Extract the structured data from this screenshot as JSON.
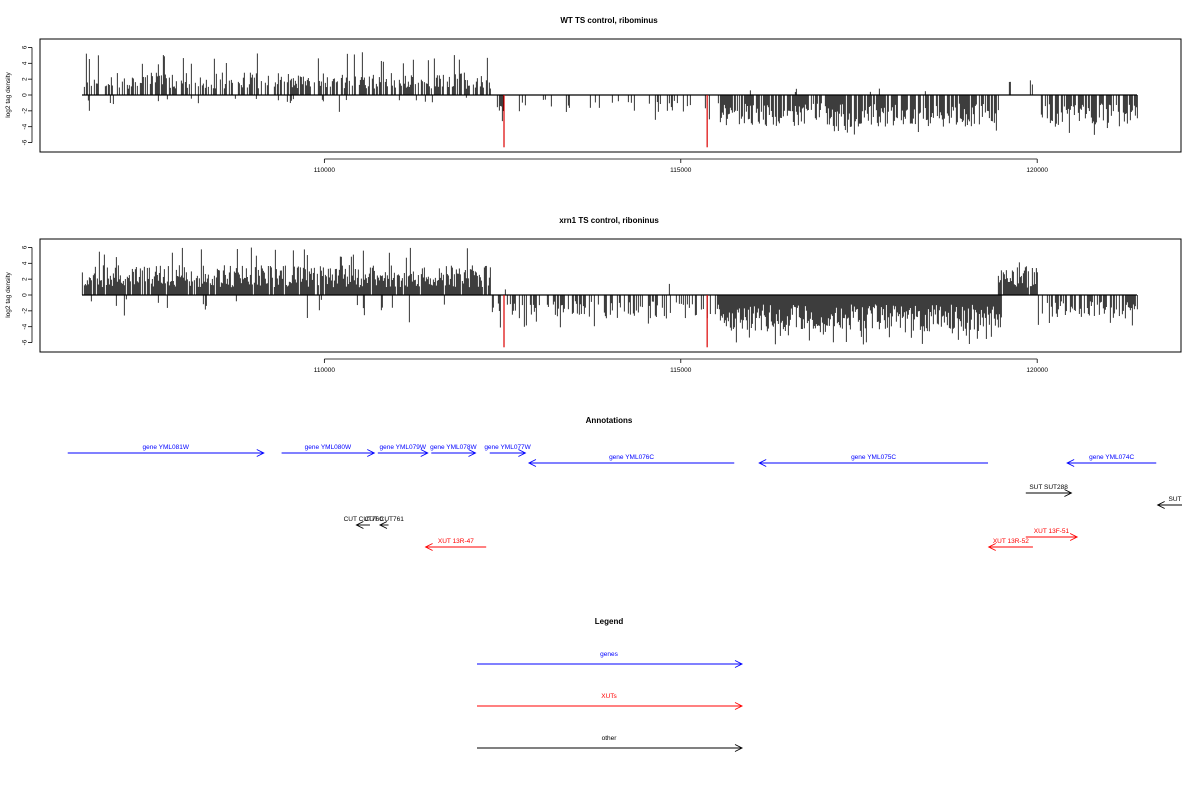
{
  "chart_data": [
    {
      "type": "bar",
      "title": "WT TS control, ribominus",
      "ylabel": "log2 tag density",
      "xlabel": "",
      "xlim": [
        106400,
        121600
      ],
      "ylim": [
        -6.5,
        6.5
      ],
      "x_ticks": [
        110000,
        115000,
        120000
      ],
      "y_ticks": [
        -6,
        -4,
        -2,
        0,
        2,
        4,
        6
      ],
      "grid": false,
      "highlight_color": "#dd0000",
      "bar_color": "#000000",
      "highlights": [
        {
          "x": 112520,
          "y": -6.6
        },
        {
          "x": 115370,
          "y": -6.6
        }
      ],
      "segments": [
        {
          "start": 106600,
          "end": 112350,
          "strand": "+",
          "level": 2.1,
          "density": 0.55,
          "max": 5.4,
          "seed": 11
        },
        {
          "start": 106600,
          "end": 112350,
          "strand": "-",
          "level": 0.9,
          "density": 0.06,
          "max": 2.8,
          "seed": 12
        },
        {
          "start": 112350,
          "end": 115550,
          "strand": "-",
          "level": 1.6,
          "density": 0.22,
          "max": 3.4,
          "seed": 13
        },
        {
          "start": 115550,
          "end": 119500,
          "strand": "-",
          "level": 3.0,
          "density": 0.75,
          "max": 5.0,
          "seed": 14
        },
        {
          "start": 115550,
          "end": 119500,
          "strand": "+",
          "level": 0.9,
          "density": 0.02,
          "max": 2.2,
          "seed": 15
        },
        {
          "start": 119500,
          "end": 120000,
          "strand": "+",
          "level": 1.8,
          "density": 0.12,
          "max": 3.3,
          "seed": 16
        },
        {
          "start": 120000,
          "end": 121400,
          "strand": "-",
          "level": 2.8,
          "density": 0.65,
          "max": 5.2,
          "seed": 17
        }
      ]
    },
    {
      "type": "bar",
      "title": "xrn1 TS control, riboninus",
      "ylabel": "log2 tag density",
      "xlabel": "",
      "xlim": [
        106400,
        121600
      ],
      "ylim": [
        -6.5,
        6.5
      ],
      "x_ticks": [
        110000,
        115000,
        120000
      ],
      "y_ticks": [
        -6,
        -4,
        -2,
        0,
        2,
        4,
        6
      ],
      "grid": false,
      "highlight_color": "#dd0000",
      "bar_color": "#000000",
      "highlights": [
        {
          "x": 112520,
          "y": -6.6
        },
        {
          "x": 115370,
          "y": -6.6
        }
      ],
      "segments": [
        {
          "start": 106600,
          "end": 112350,
          "strand": "+",
          "level": 2.8,
          "density": 0.95,
          "max": 6.3,
          "seed": 21
        },
        {
          "start": 106600,
          "end": 112350,
          "strand": "-",
          "level": 1.5,
          "density": 0.05,
          "max": 3.6,
          "seed": 22
        },
        {
          "start": 112350,
          "end": 115550,
          "strand": "-",
          "level": 2.2,
          "density": 0.45,
          "max": 4.2,
          "seed": 23
        },
        {
          "start": 112350,
          "end": 115550,
          "strand": "+",
          "level": 1.5,
          "density": 0.03,
          "max": 4.2,
          "seed": 24
        },
        {
          "start": 115550,
          "end": 119500,
          "strand": "-",
          "level": 3.4,
          "density": 1.0,
          "max": 6.3,
          "seed": 25
        },
        {
          "start": 119450,
          "end": 120000,
          "strand": "+",
          "level": 2.6,
          "density": 0.9,
          "max": 4.8,
          "seed": 26
        },
        {
          "start": 120000,
          "end": 121400,
          "strand": "-",
          "level": 2.2,
          "density": 0.55,
          "max": 4.0,
          "seed": 27
        }
      ]
    }
  ],
  "annotations": {
    "title": "Annotations",
    "xlim": [
      106400,
      121600
    ],
    "features": [
      {
        "label": "gene YML081W",
        "start": 106400,
        "end": 109150,
        "strand": "+",
        "row": 0,
        "kind": "gene"
      },
      {
        "label": "gene YML080W",
        "start": 109400,
        "end": 110700,
        "strand": "+",
        "row": 0,
        "kind": "gene"
      },
      {
        "label": "gene YML079W",
        "start": 110750,
        "end": 111450,
        "strand": "+",
        "row": 0,
        "kind": "gene"
      },
      {
        "label": "gene YML078W",
        "start": 111500,
        "end": 112120,
        "strand": "+",
        "row": 0,
        "kind": "gene"
      },
      {
        "label": "gene YML077W",
        "start": 112320,
        "end": 112820,
        "strand": "+",
        "row": 0,
        "kind": "gene"
      },
      {
        "label": "gene YML076C",
        "start": 112870,
        "end": 115750,
        "strand": "-",
        "row": 1,
        "kind": "gene"
      },
      {
        "label": "gene YML075C",
        "start": 116100,
        "end": 119310,
        "strand": "-",
        "row": 1,
        "kind": "gene"
      },
      {
        "label": "gene YML074C",
        "start": 120420,
        "end": 121670,
        "strand": "-",
        "row": 1,
        "kind": "gene"
      },
      {
        "label": "SUT SUT288",
        "start": 119840,
        "end": 120480,
        "strand": "+",
        "row": 3,
        "kind": "other"
      },
      {
        "label": "SUT",
        "start": 121690,
        "end": 122400,
        "strand": "-",
        "row": 4,
        "kind": "other"
      },
      {
        "label": "XUT 13F-51",
        "start": 119840,
        "end": 120560,
        "strand": "+",
        "row": 7,
        "kind": "xut"
      },
      {
        "label": "XUT 13R-52",
        "start": 119320,
        "end": 119940,
        "strand": "-",
        "row": 8,
        "kind": "xut"
      },
      {
        "label": "CUT CUT760",
        "start": 110450,
        "end": 110640,
        "strand": "-",
        "row": 5,
        "kind": "other"
      },
      {
        "label": "CUT CUT761",
        "start": 110780,
        "end": 110900,
        "strand": "-",
        "row": 5,
        "kind": "other"
      },
      {
        "label": "XUT 13R-47",
        "start": 111420,
        "end": 112270,
        "strand": "-",
        "row": 8,
        "kind": "xut"
      }
    ]
  },
  "legend": {
    "title": "Legend",
    "items": [
      {
        "label": "genes",
        "color": "#0000ff"
      },
      {
        "label": "XUTs",
        "color": "#ff0000"
      },
      {
        "label": "other",
        "color": "#000000"
      }
    ]
  },
  "colors": {
    "gene": "#0000ff",
    "xut": "#ff0000",
    "other": "#000000"
  }
}
